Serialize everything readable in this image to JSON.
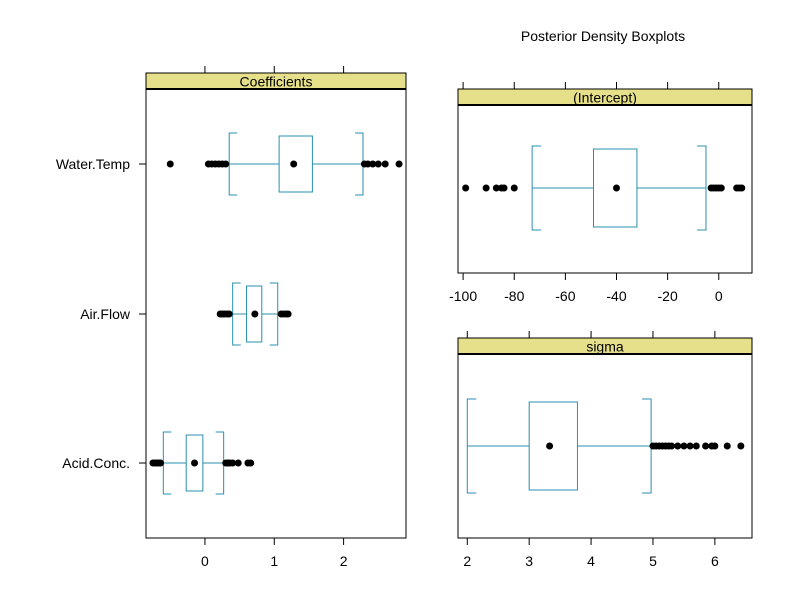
{
  "figure_title": "Posterior Density Boxplots",
  "colors": {
    "strip_bg": "#e6e08a",
    "box": "#2a8fb0",
    "points": "#000000",
    "frame": "#000000"
  },
  "chart_data": [
    {
      "type": "boxplot",
      "panel": "Coefficients",
      "orientation": "horizontal",
      "xlim": [
        -0.85,
        2.9
      ],
      "x_ticks_bottom": [
        "0",
        "1",
        "2"
      ],
      "x_ticks_top": [
        0,
        1,
        2
      ],
      "categories": [
        "Water.Temp",
        "Air.Flow",
        "Acid.Conc."
      ],
      "boxes": [
        {
          "label": "Water.Temp",
          "whisker_low": 0.35,
          "q1": 1.07,
          "median": 1.28,
          "q3": 1.55,
          "whisker_high": 2.28,
          "outliers": [
            -0.5,
            0.05,
            0.1,
            0.15,
            0.2,
            0.25,
            0.3,
            2.3,
            2.35,
            2.42,
            2.5,
            2.6,
            2.8
          ]
        },
        {
          "label": "Air.Flow",
          "whisker_low": 0.4,
          "q1": 0.6,
          "median": 0.72,
          "q3": 0.82,
          "whisker_high": 1.05,
          "outliers": [
            0.22,
            0.25,
            0.28,
            0.32,
            0.35,
            1.1,
            1.14,
            1.18,
            1.2
          ]
        },
        {
          "label": "Acid.Conc.",
          "whisker_low": -0.6,
          "q1": -0.27,
          "median": -0.15,
          "q3": -0.03,
          "whisker_high": 0.27,
          "outliers": [
            -0.75,
            -0.72,
            -0.7,
            -0.68,
            -0.66,
            -0.64,
            0.3,
            0.33,
            0.36,
            0.4,
            0.48,
            0.62,
            0.66
          ]
        }
      ]
    },
    {
      "type": "boxplot",
      "panel": "(Intercept)",
      "orientation": "horizontal",
      "xlim": [
        -102,
        13
      ],
      "x_ticks_bottom": [
        "-100",
        "-80",
        "-60",
        "-40",
        "-20",
        "0"
      ],
      "x_ticks_top": [
        -100,
        -80,
        -60,
        -40,
        -20,
        0
      ],
      "boxes": [
        {
          "whisker_low": -73,
          "q1": -49,
          "median": -40,
          "q3": -32,
          "whisker_high": -5,
          "outliers": [
            -99,
            -91,
            -87,
            -85,
            -84,
            -80,
            -3,
            -2,
            -1,
            0,
            1,
            7,
            8,
            9
          ]
        }
      ]
    },
    {
      "type": "boxplot",
      "panel": "sigma",
      "orientation": "horizontal",
      "xlim": [
        1.85,
        6.6
      ],
      "x_ticks_bottom": [
        "2",
        "3",
        "4",
        "5",
        "6"
      ],
      "x_ticks_top": [
        2,
        3,
        4,
        5,
        6
      ],
      "boxes": [
        {
          "whisker_low": 2.0,
          "q1": 3.0,
          "median": 3.33,
          "q3": 3.78,
          "whisker_high": 4.97,
          "outliers": [
            5.0,
            5.05,
            5.1,
            5.15,
            5.2,
            5.25,
            5.3,
            5.4,
            5.5,
            5.6,
            5.7,
            5.85,
            5.95,
            6.0,
            6.2,
            6.42
          ]
        }
      ]
    }
  ]
}
